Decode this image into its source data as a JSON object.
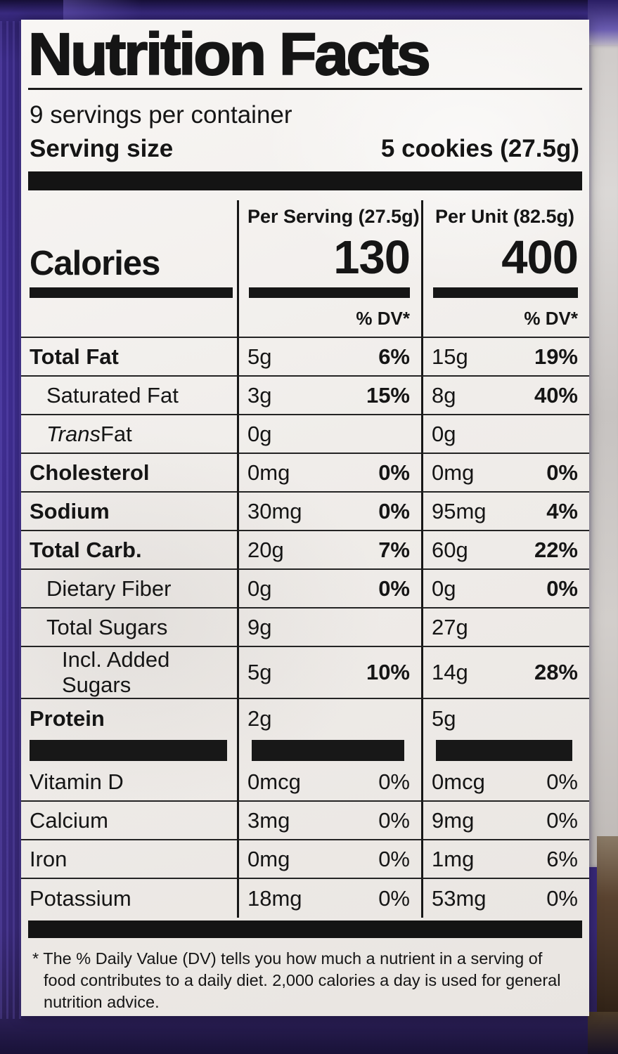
{
  "package": {
    "background_color": "#3a2a85",
    "edge_strip_color": "#cfcbc9",
    "edge_brown_color": "#5a4330",
    "label_background": "#f0edea",
    "ink_color": "#151515"
  },
  "label": {
    "title": "Nutrition Facts",
    "servings_line": "9 servings per container",
    "serving_size_label": "Serving size",
    "serving_size_value": "5 cookies (27.5g)",
    "calories": {
      "label": "Calories",
      "per_serving_header": "Per Serving (27.5g)",
      "per_unit_header": "Per Unit (82.5g)",
      "per_serving_value": "130",
      "per_unit_value": "400"
    },
    "dv_header_serving": "% DV*",
    "dv_header_unit": "% DV*",
    "nutrients": [
      {
        "name": "Total Fat",
        "serving_amount": "5g",
        "serving_dv": "6%",
        "unit_amount": "15g",
        "unit_dv": "19%"
      },
      {
        "name": "Saturated Fat",
        "serving_amount": "3g",
        "serving_dv": "15%",
        "unit_amount": "8g",
        "unit_dv": "40%"
      },
      {
        "name_italic": "Trans",
        "name": " Fat",
        "serving_amount": "0g",
        "serving_dv": "",
        "unit_amount": "0g",
        "unit_dv": ""
      },
      {
        "name": "Cholesterol",
        "serving_amount": "0mg",
        "serving_dv": "0%",
        "unit_amount": "0mg",
        "unit_dv": "0%"
      },
      {
        "name": "Sodium",
        "serving_amount": "30mg",
        "serving_dv": "0%",
        "unit_amount": "95mg",
        "unit_dv": "4%"
      },
      {
        "name": "Total Carb.",
        "serving_amount": "20g",
        "serving_dv": "7%",
        "unit_amount": "60g",
        "unit_dv": "22%"
      },
      {
        "name": "Dietary Fiber",
        "serving_amount": "0g",
        "serving_dv": "0%",
        "unit_amount": "0g",
        "unit_dv": "0%"
      },
      {
        "name": "Total Sugars",
        "serving_amount": "9g",
        "serving_dv": "",
        "unit_amount": "27g",
        "unit_dv": ""
      },
      {
        "name": "Incl. Added Sugars",
        "serving_amount": "5g",
        "serving_dv": "10%",
        "unit_amount": "14g",
        "unit_dv": "28%"
      },
      {
        "name": "Protein",
        "serving_amount": "2g",
        "serving_dv": "",
        "unit_amount": "5g",
        "unit_dv": ""
      }
    ],
    "vitamins": [
      {
        "name": "Vitamin D",
        "serving_amount": "0mcg",
        "serving_dv": "0%",
        "unit_amount": "0mcg",
        "unit_dv": "0%"
      },
      {
        "name": "Calcium",
        "serving_amount": "3mg",
        "serving_dv": "0%",
        "unit_amount": "9mg",
        "unit_dv": "0%"
      },
      {
        "name": "Iron",
        "serving_amount": "0mg",
        "serving_dv": "0%",
        "unit_amount": "1mg",
        "unit_dv": "6%"
      },
      {
        "name": "Potassium",
        "serving_amount": "18mg",
        "serving_dv": "0%",
        "unit_amount": "53mg",
        "unit_dv": "0%"
      }
    ],
    "footnote": "* The % Daily Value (DV) tells you how much a nutrient in a serving of food contributes to a daily diet. 2,000 calories a day is used for general nutrition advice."
  }
}
